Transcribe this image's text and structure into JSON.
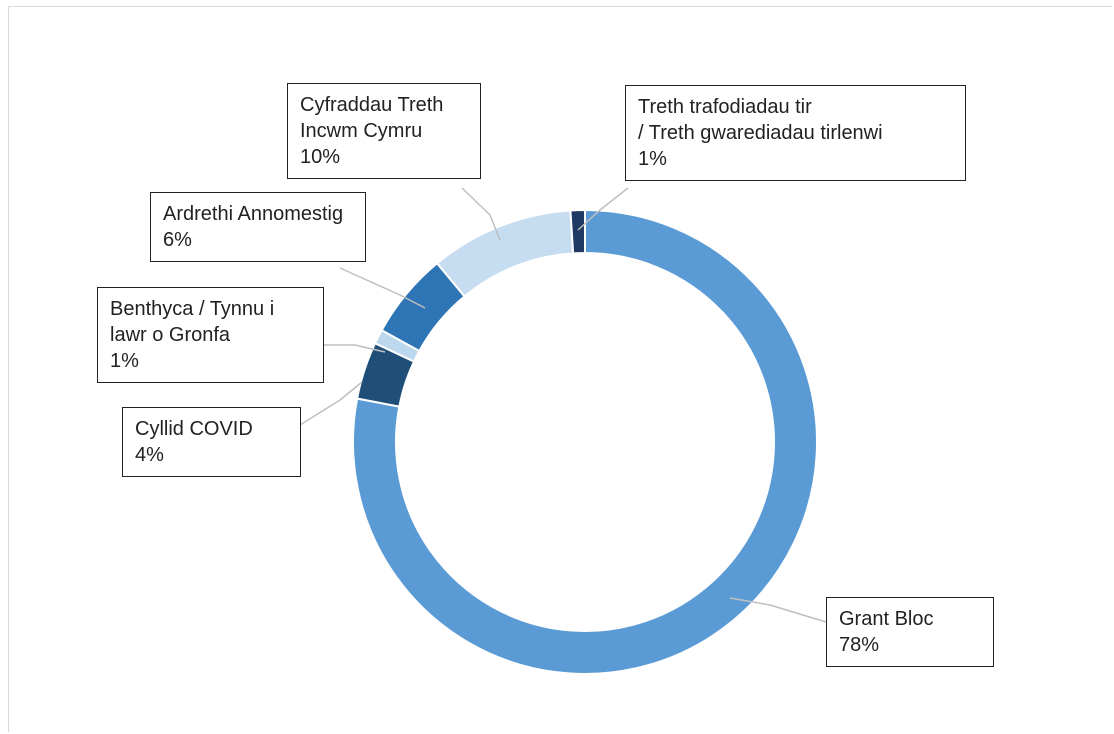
{
  "chart_data": {
    "type": "donut",
    "categories": [
      "Grant Bloc",
      "Cyllid COVID",
      "Benthyca / Tynnu i lawr o Gronfa",
      "Ardrethi Annomestig",
      "Cyfraddau Treth Incwm Cymru",
      "Treth trafodiadau tir\n/ Treth gwarediadau tirlenwi"
    ],
    "values": [
      78,
      4,
      1,
      6,
      10,
      1
    ],
    "value_labels": [
      "78%",
      "4%",
      "1%",
      "6%",
      "10%",
      "1%"
    ],
    "colors": [
      "#5b9bd5",
      "#1f4e79",
      "#bdd7ee",
      "#2e75b6",
      "#c5dcf1",
      "#1f3864"
    ]
  }
}
